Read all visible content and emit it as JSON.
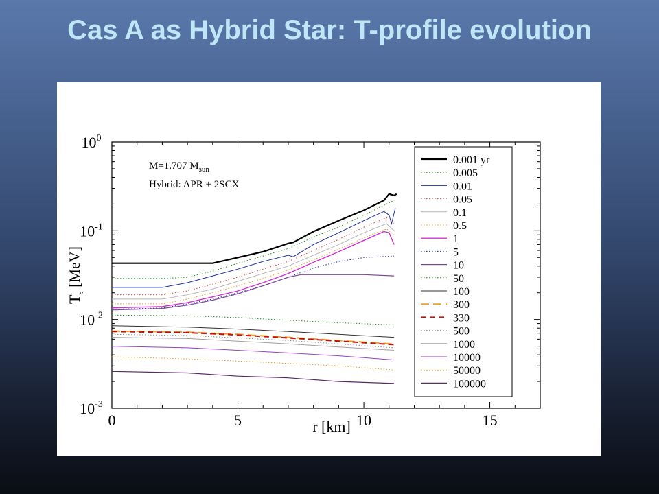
{
  "slide": {
    "title": "Cas A as Hybrid Star: T-profile evolution"
  },
  "chart_data": {
    "type": "line",
    "title": "",
    "xlabel": "r [km]",
    "ylabel": "T_s [MeV]",
    "ylabel_parts": {
      "main": "T",
      "sub": "s",
      "unit": " [MeV]"
    },
    "x_log": false,
    "y_log": true,
    "xlim": [
      0,
      17
    ],
    "ylim": [
      0.001,
      1
    ],
    "x_ticks": [
      0,
      5,
      10,
      15
    ],
    "y_ticks": [
      0.001,
      0.01,
      0.1,
      1
    ],
    "y_tick_labels": [
      {
        "base": "10",
        "exp": "-3"
      },
      {
        "base": "10",
        "exp": "-2"
      },
      {
        "base": "10",
        "exp": "-1"
      },
      {
        "base": "10",
        "exp": "0"
      }
    ],
    "grid": false,
    "legend_position": "right",
    "annotations": [
      {
        "text": "M=1.707 M",
        "subscript": "sun"
      },
      {
        "text": "Hybrid: APR + 2SCX"
      }
    ],
    "series": [
      {
        "name": "0.001 yr",
        "color": "#000000",
        "dash": "solid",
        "width": 2.2,
        "x": [
          0,
          2,
          4,
          5,
          6,
          7,
          7.2,
          8,
          9,
          10,
          10.8,
          11.0,
          11.2,
          11.3
        ],
        "y": [
          0.043,
          0.043,
          0.043,
          0.05,
          0.058,
          0.072,
          0.074,
          0.098,
          0.13,
          0.17,
          0.22,
          0.26,
          0.25,
          0.26
        ]
      },
      {
        "name": "0.005",
        "color": "#1f8f1f",
        "dash": "dot",
        "width": 1,
        "x": [
          0,
          2,
          3,
          4,
          5,
          6,
          7,
          8,
          9,
          10,
          10.9,
          11.2
        ],
        "y": [
          0.029,
          0.029,
          0.03,
          0.035,
          0.043,
          0.052,
          0.063,
          0.085,
          0.11,
          0.15,
          0.2,
          0.22
        ]
      },
      {
        "name": "0.01",
        "color": "#1f2f9f",
        "dash": "solid",
        "width": 1,
        "x": [
          0,
          2,
          3,
          4,
          5,
          6,
          7,
          7.2,
          8,
          9,
          10,
          10.8,
          11.0,
          11.1,
          11.25
        ],
        "y": [
          0.023,
          0.023,
          0.026,
          0.031,
          0.037,
          0.045,
          0.053,
          0.051,
          0.07,
          0.095,
          0.13,
          0.165,
          0.15,
          0.12,
          0.18
        ]
      },
      {
        "name": "0.05",
        "color": "#d04040",
        "dash": "dot",
        "width": 1,
        "x": [
          0,
          2,
          3,
          4,
          5,
          6,
          7,
          8,
          9,
          10,
          10.9,
          11.2
        ],
        "y": [
          0.019,
          0.019,
          0.021,
          0.025,
          0.03,
          0.037,
          0.045,
          0.06,
          0.08,
          0.11,
          0.14,
          0.12
        ]
      },
      {
        "name": "0.1",
        "color": "#b8b8b8",
        "dash": "solid",
        "width": 1,
        "x": [
          0,
          2,
          3,
          4,
          5,
          6,
          7,
          8,
          9,
          10,
          10.9,
          11.2
        ],
        "y": [
          0.017,
          0.017,
          0.019,
          0.022,
          0.027,
          0.033,
          0.04,
          0.053,
          0.07,
          0.095,
          0.12,
          0.1
        ]
      },
      {
        "name": "0.5",
        "color": "#e69a20",
        "dash": "dot",
        "width": 1,
        "x": [
          0,
          2,
          3,
          4,
          5,
          6,
          7,
          8,
          9,
          10,
          10.9,
          11.2
        ],
        "y": [
          0.015,
          0.015,
          0.017,
          0.02,
          0.024,
          0.029,
          0.036,
          0.047,
          0.062,
          0.083,
          0.105,
          0.09
        ]
      },
      {
        "name": "1",
        "color": "#d030d0",
        "dash": "solid",
        "width": 1.4,
        "x": [
          0,
          2,
          3,
          4,
          5,
          6,
          7,
          7.3,
          8,
          9,
          10,
          10.8,
          11.0,
          11.2
        ],
        "y": [
          0.0135,
          0.014,
          0.0155,
          0.018,
          0.021,
          0.026,
          0.033,
          0.036,
          0.044,
          0.058,
          0.078,
          0.098,
          0.095,
          0.07
        ]
      },
      {
        "name": "5",
        "color": "#1f2f9f",
        "dash": "dot",
        "width": 1,
        "x": [
          0,
          2,
          3,
          4,
          5,
          6,
          7,
          8,
          9,
          10,
          11.2
        ],
        "y": [
          0.013,
          0.0135,
          0.015,
          0.017,
          0.02,
          0.024,
          0.03,
          0.038,
          0.045,
          0.05,
          0.052
        ]
      },
      {
        "name": "10",
        "color": "#7a4a9a",
        "dash": "solid",
        "width": 1.2,
        "x": [
          0,
          2,
          3,
          4,
          5,
          6,
          7,
          7.5,
          8,
          9,
          10,
          11.2
        ],
        "y": [
          0.0128,
          0.0133,
          0.0145,
          0.0165,
          0.0195,
          0.024,
          0.03,
          0.032,
          0.032,
          0.032,
          0.032,
          0.031
        ]
      },
      {
        "name": "50",
        "color": "#1f8f1f",
        "dash": "dot",
        "width": 1,
        "x": [
          0,
          3,
          5,
          7,
          9,
          11.2
        ],
        "y": [
          0.0112,
          0.011,
          0.0105,
          0.0098,
          0.0092,
          0.0087
        ]
      },
      {
        "name": "100",
        "color": "#333333",
        "dash": "solid",
        "width": 1,
        "x": [
          0,
          3,
          5,
          7,
          9,
          11.2
        ],
        "y": [
          0.0085,
          0.0082,
          0.0078,
          0.0073,
          0.0068,
          0.0063
        ]
      },
      {
        "name": "300",
        "color": "#f0a020",
        "dash": "longdash",
        "width": 2,
        "x": [
          0,
          3,
          5,
          7,
          9,
          11.2
        ],
        "y": [
          0.0074,
          0.0072,
          0.0068,
          0.0063,
          0.0058,
          0.0053
        ]
      },
      {
        "name": "330",
        "color": "#c01010",
        "dash": "dash",
        "width": 2,
        "x": [
          0,
          3,
          5,
          7,
          9,
          11.2
        ],
        "y": [
          0.0073,
          0.0071,
          0.0067,
          0.0062,
          0.0057,
          0.0052
        ]
      },
      {
        "name": "500",
        "color": "#888888",
        "dash": "dot",
        "width": 1,
        "x": [
          0,
          3,
          5,
          7,
          9,
          11.2
        ],
        "y": [
          0.0068,
          0.0066,
          0.0062,
          0.0058,
          0.0053,
          0.0048
        ]
      },
      {
        "name": "1000",
        "color": "#a0a0a0",
        "dash": "solid",
        "width": 1,
        "x": [
          0,
          3,
          5,
          7,
          9,
          11.2
        ],
        "y": [
          0.0063,
          0.0061,
          0.0057,
          0.0053,
          0.0049,
          0.0045
        ]
      },
      {
        "name": "10000",
        "color": "#9a40c0",
        "dash": "solid",
        "width": 1,
        "x": [
          0,
          3,
          5,
          7,
          9,
          11.2
        ],
        "y": [
          0.005,
          0.0048,
          0.0045,
          0.0042,
          0.0039,
          0.0035
        ]
      },
      {
        "name": "50000",
        "color": "#e69a20",
        "dash": "dot",
        "width": 1,
        "x": [
          0,
          3,
          5,
          7,
          9,
          11.2
        ],
        "y": [
          0.0038,
          0.0036,
          0.0034,
          0.0032,
          0.003,
          0.0027
        ]
      },
      {
        "name": "100000",
        "color": "#5a2a6a",
        "dash": "solid",
        "width": 1.2,
        "x": [
          0,
          3,
          5,
          7,
          9,
          11.2
        ],
        "y": [
          0.0026,
          0.0025,
          0.0023,
          0.0022,
          0.002,
          0.0019
        ]
      }
    ]
  }
}
